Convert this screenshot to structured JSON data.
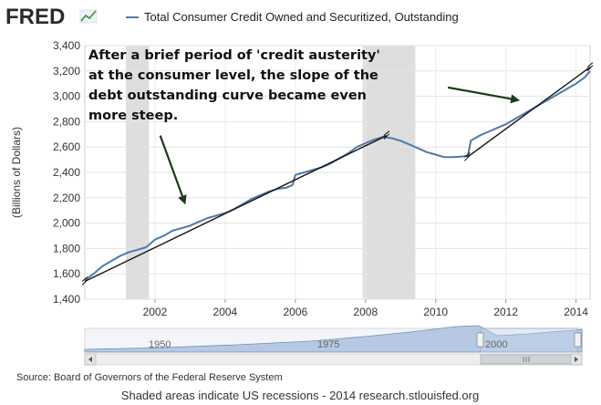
{
  "header": {
    "logo_text": "FRED",
    "legend_label": "Total Consumer Credit Owned and Securitized, Outstanding"
  },
  "colors": {
    "series": "#4f7aa8",
    "recession": "#dedede",
    "trend_line": "#111111",
    "navigator_fill": "#b7c9e2"
  },
  "icons": {
    "logo_chart": "sparkline-icon",
    "scroll_left": "arrow-left-icon",
    "scroll_right": "arrow-right-icon",
    "scroll_grip": "grip-icon"
  },
  "chart_data": {
    "type": "line",
    "title": "Total Consumer Credit Owned and Securitized, Outstanding",
    "ylabel": "(Billions of Dollars)",
    "xlabel": "",
    "xlim": [
      2000.0,
      2014.4
    ],
    "ylim": [
      1400,
      3400
    ],
    "y_ticks": [
      1400,
      1600,
      1800,
      2000,
      2200,
      2400,
      2600,
      2800,
      3000,
      3200,
      3400
    ],
    "y_tick_labels": [
      "1,400",
      "1,600",
      "1,800",
      "2,000",
      "2,200",
      "2,400",
      "2,600",
      "2,800",
      "3,000",
      "3,200",
      "3,400"
    ],
    "x_ticks": [
      2002,
      2004,
      2006,
      2008,
      2010,
      2012,
      2014
    ],
    "x_tick_labels": [
      "2002",
      "2004",
      "2006",
      "2008",
      "2010",
      "2012",
      "2014"
    ],
    "grid": true,
    "recessions": [
      [
        2001.17,
        2001.83
      ],
      [
        2007.92,
        2009.42
      ]
    ],
    "series": [
      {
        "name": "Total Consumer Credit Owned and Securitized, Outstanding",
        "x": [
          2000.0,
          2000.25,
          2000.5,
          2000.75,
          2001.0,
          2001.25,
          2001.5,
          2001.75,
          2002.0,
          2002.25,
          2002.5,
          2002.75,
          2003.0,
          2003.25,
          2003.5,
          2003.75,
          2004.0,
          2004.25,
          2004.5,
          2004.75,
          2005.0,
          2005.25,
          2005.5,
          2005.75,
          2005.92,
          2006.0,
          2006.25,
          2006.5,
          2006.75,
          2007.0,
          2007.25,
          2007.5,
          2007.75,
          2008.0,
          2008.25,
          2008.5,
          2008.75,
          2009.0,
          2009.25,
          2009.5,
          2009.75,
          2010.0,
          2010.25,
          2010.5,
          2010.75,
          2010.92,
          2011.0,
          2011.25,
          2011.5,
          2011.75,
          2012.0,
          2012.25,
          2012.5,
          2012.75,
          2013.0,
          2013.25,
          2013.5,
          2013.75,
          2014.0,
          2014.25,
          2014.4
        ],
        "values": [
          1550,
          1600,
          1660,
          1700,
          1740,
          1770,
          1790,
          1810,
          1870,
          1900,
          1940,
          1960,
          1980,
          2010,
          2040,
          2060,
          2080,
          2110,
          2150,
          2190,
          2220,
          2250,
          2270,
          2280,
          2300,
          2380,
          2400,
          2420,
          2440,
          2470,
          2510,
          2550,
          2600,
          2630,
          2660,
          2680,
          2670,
          2650,
          2620,
          2590,
          2560,
          2540,
          2520,
          2520,
          2525,
          2530,
          2650,
          2690,
          2720,
          2750,
          2780,
          2820,
          2860,
          2900,
          2940,
          2980,
          3020,
          3060,
          3100,
          3150,
          3200
        ]
      }
    ],
    "annotation": {
      "lines": [
        "After a brief period of 'credit austerity'",
        "at the consumer level, the slope of the",
        "debt outstanding curve became even",
        "more steep."
      ]
    },
    "trend_lines": [
      {
        "x": [
          2000.0,
          2008.6
        ],
        "values": [
          1540,
          2690
        ]
      },
      {
        "x": [
          2010.9,
          2014.4
        ],
        "values": [
          2520,
          3230
        ]
      }
    ],
    "pointer_arrows": [
      {
        "from": [
          2002.15,
          2690
        ],
        "to": [
          2002.85,
          2160
        ]
      },
      {
        "from": [
          2010.35,
          3070
        ],
        "to": [
          2012.35,
          2970
        ]
      }
    ]
  },
  "navigator": {
    "tick_labels": [
      "1950",
      "1975",
      "2000"
    ]
  },
  "footer": {
    "source": "Source: Board of Governors of the Federal Reserve System",
    "note": "Shaded areas indicate US recessions - 2014 research.stlouisfed.org"
  }
}
